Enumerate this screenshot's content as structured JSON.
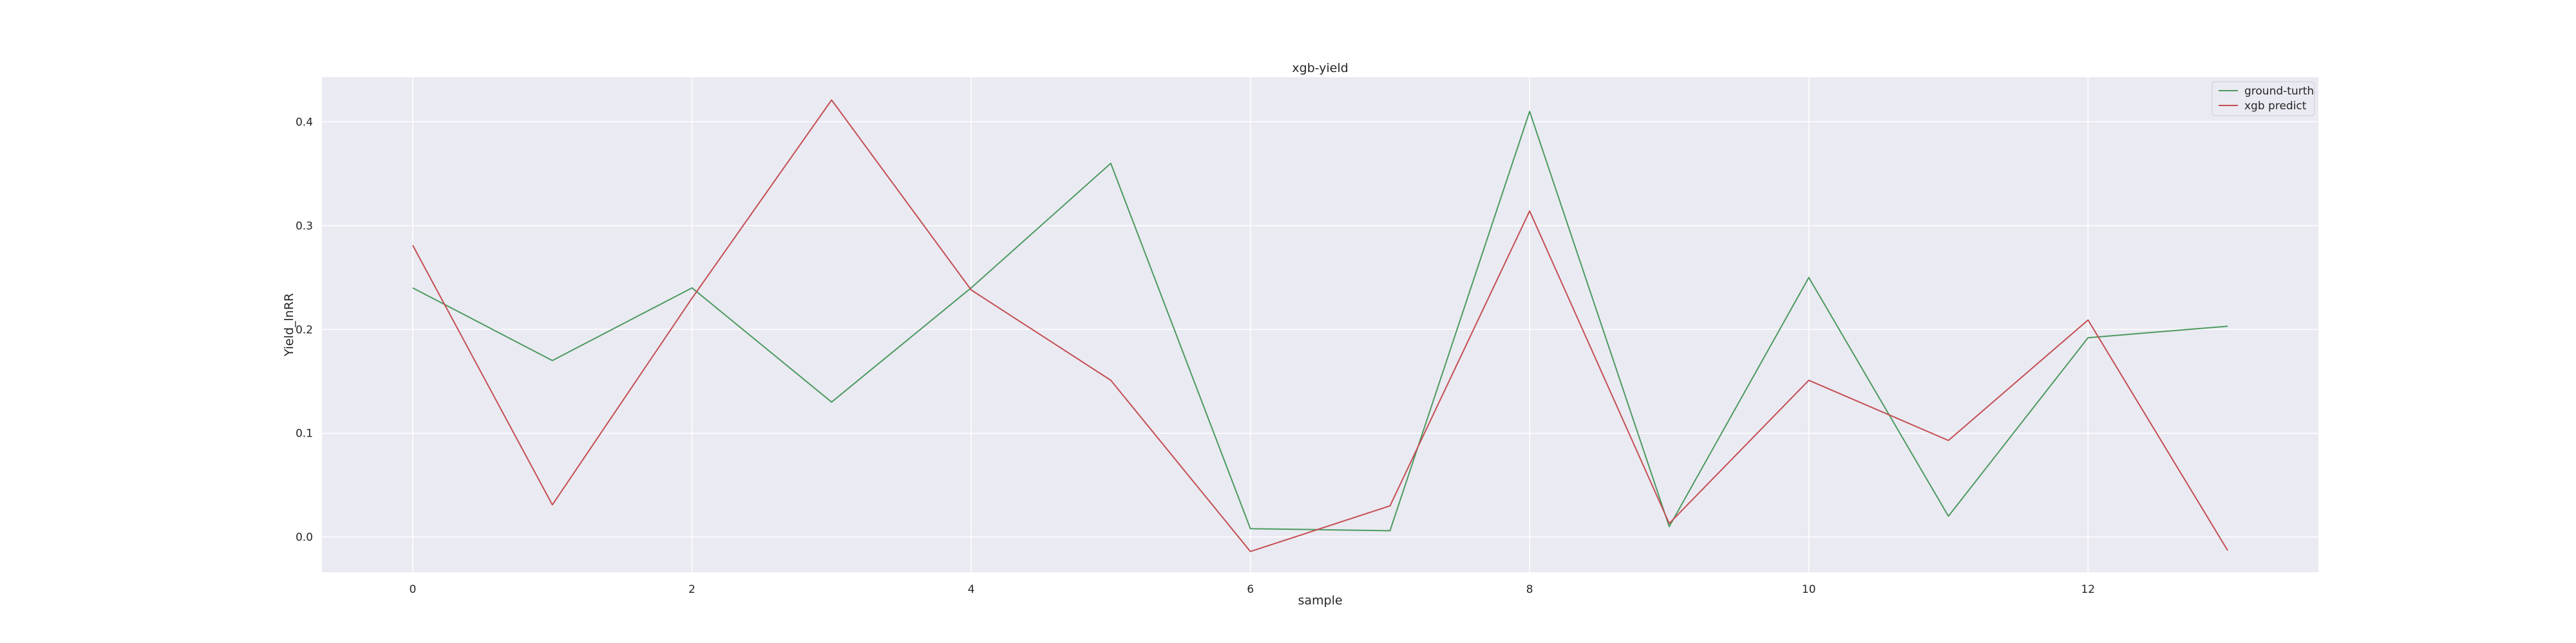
{
  "chart_data": {
    "type": "line",
    "title": "xgb-yield",
    "xlabel": "sample",
    "ylabel": "Yield_lnRR",
    "x": [
      0,
      1,
      2,
      3,
      4,
      5,
      6,
      7,
      8,
      9,
      10,
      11,
      12,
      13
    ],
    "xlim": [
      -0.65,
      13.65
    ],
    "ylim": [
      -0.034,
      0.443
    ],
    "xticks": [
      0,
      2,
      4,
      6,
      8,
      10,
      12
    ],
    "yticks": [
      0.0,
      0.1,
      0.2,
      0.3,
      0.4
    ],
    "ytick_labels": [
      "0.0",
      "0.1",
      "0.2",
      "0.3",
      "0.4"
    ],
    "grid": true,
    "legend_position": "top-right",
    "series": [
      {
        "name": "ground-turth",
        "color": "#4c9a5f",
        "values": [
          0.24,
          0.17,
          0.24,
          0.13,
          0.24,
          0.36,
          0.008,
          0.006,
          0.41,
          0.01,
          0.25,
          0.02,
          0.192,
          0.203
        ]
      },
      {
        "name": "xgb predict",
        "color": "#c44e52",
        "values": [
          0.281,
          0.031,
          0.23,
          0.421,
          0.238,
          0.151,
          -0.014,
          0.03,
          0.314,
          0.013,
          0.151,
          0.093,
          0.209,
          -0.013
        ]
      }
    ]
  }
}
